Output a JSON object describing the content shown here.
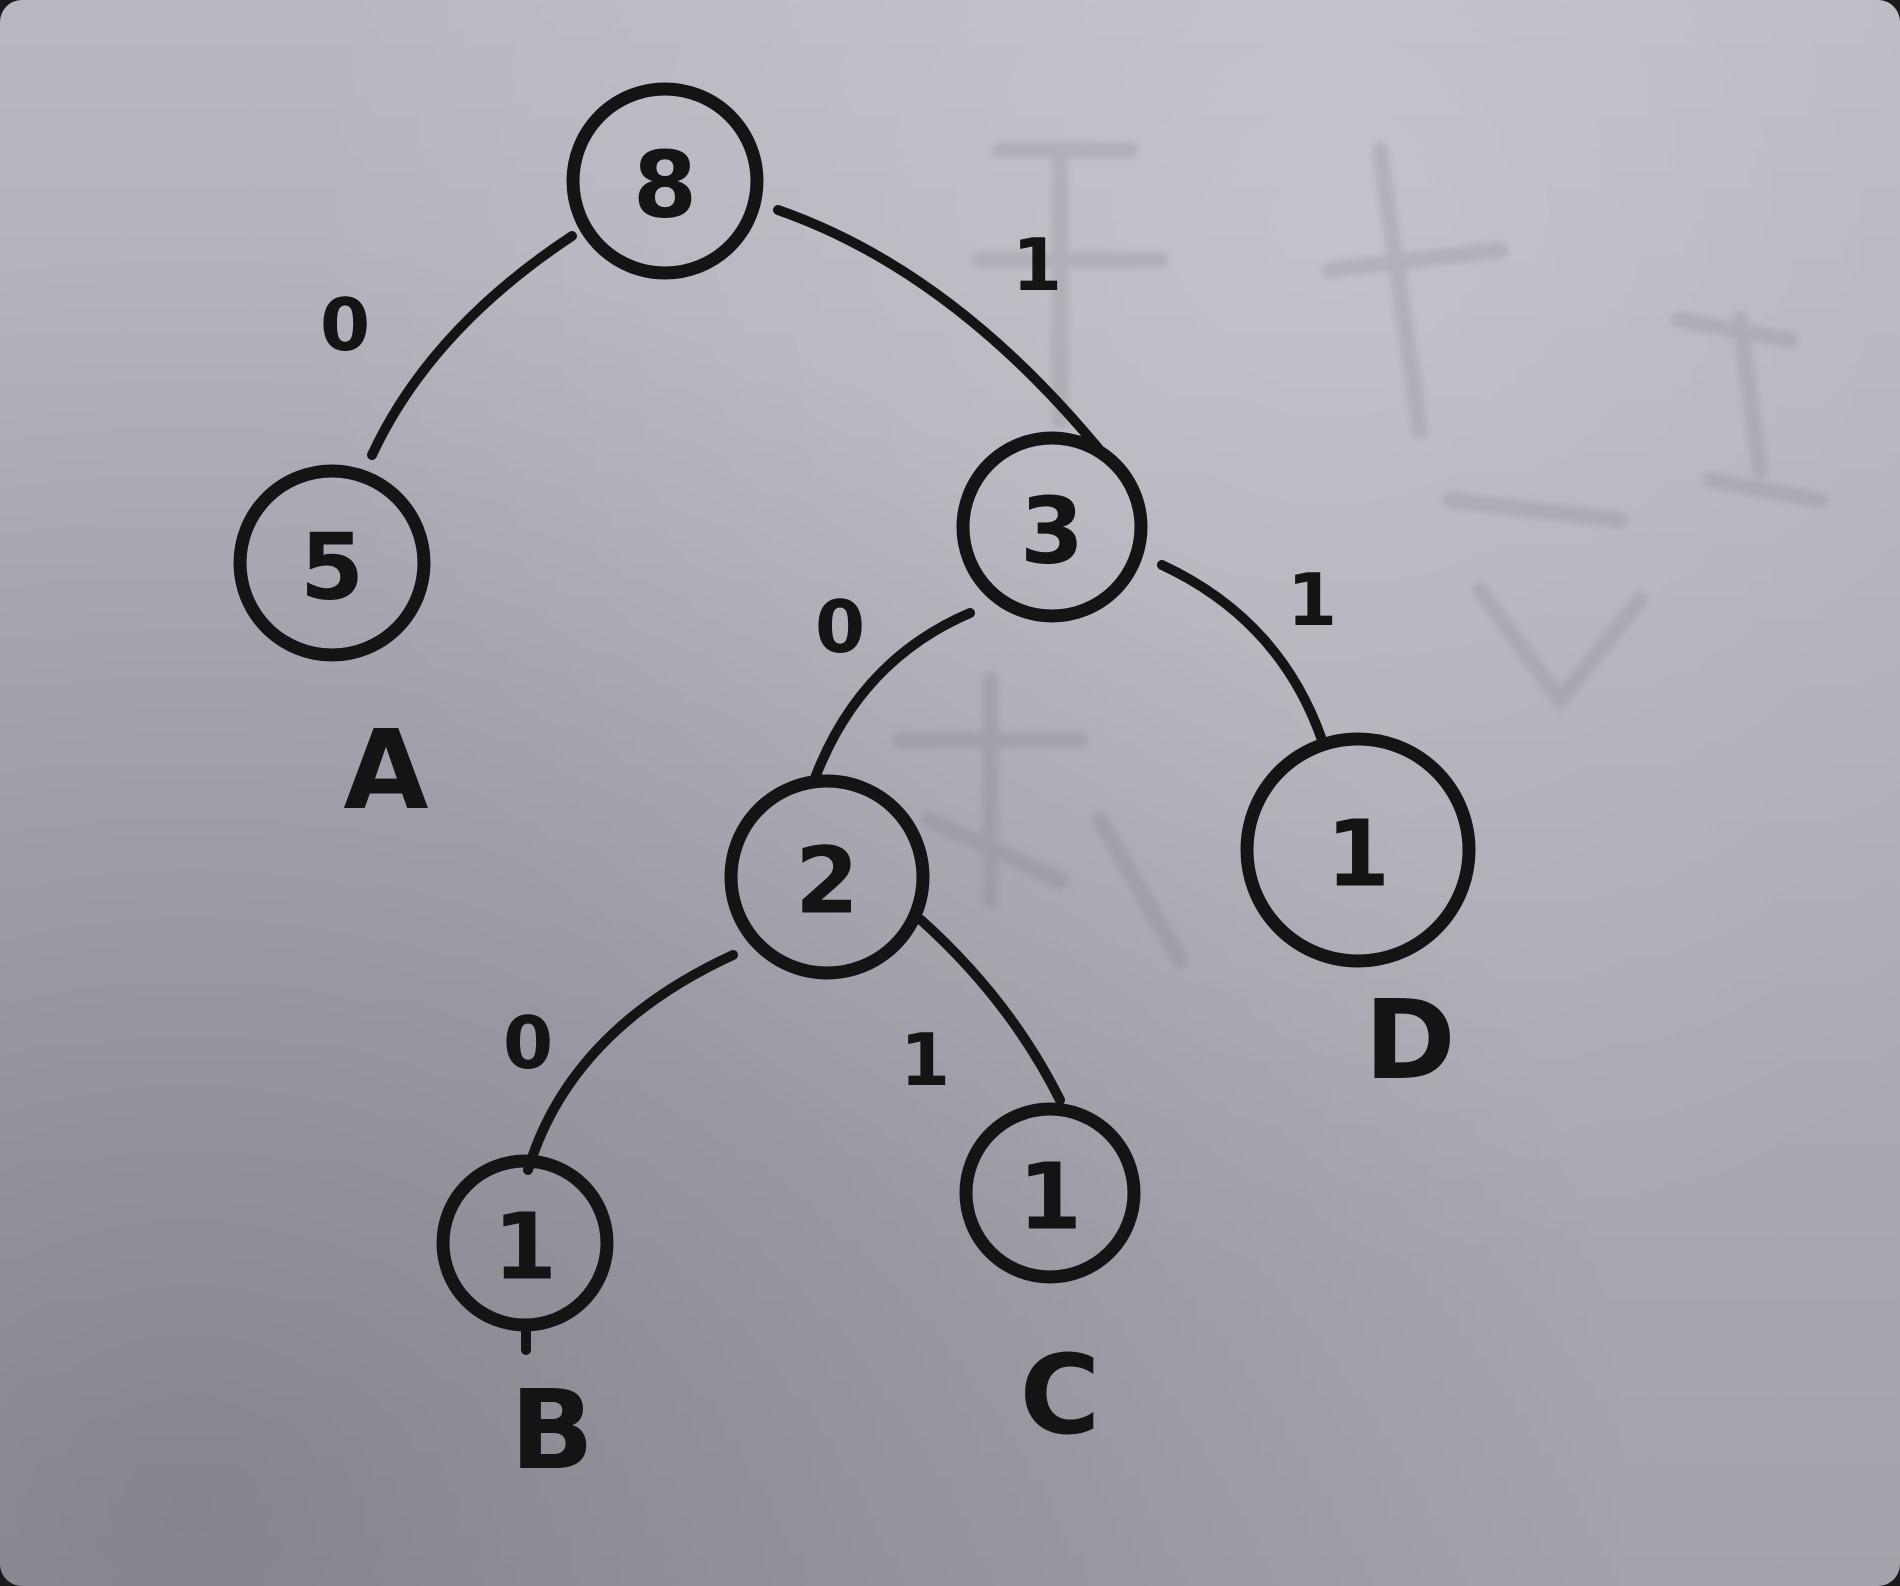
{
  "tree": {
    "root": {
      "value": "8"
    },
    "node_a": {
      "value": "5",
      "label": "A"
    },
    "node_3": {
      "value": "3"
    },
    "node_2": {
      "value": "2"
    },
    "node_d": {
      "value": "1",
      "label": "D"
    },
    "node_b": {
      "value": "1",
      "label": "B"
    },
    "node_c": {
      "value": "1",
      "label": "C"
    }
  },
  "edges": {
    "root_a": "0",
    "root_3": "1",
    "n3_2": "0",
    "n3_d": "1",
    "n2_b": "0",
    "n2_c": "1"
  },
  "colors": {
    "ink": "#141414",
    "paper": "#b1b0ba"
  }
}
